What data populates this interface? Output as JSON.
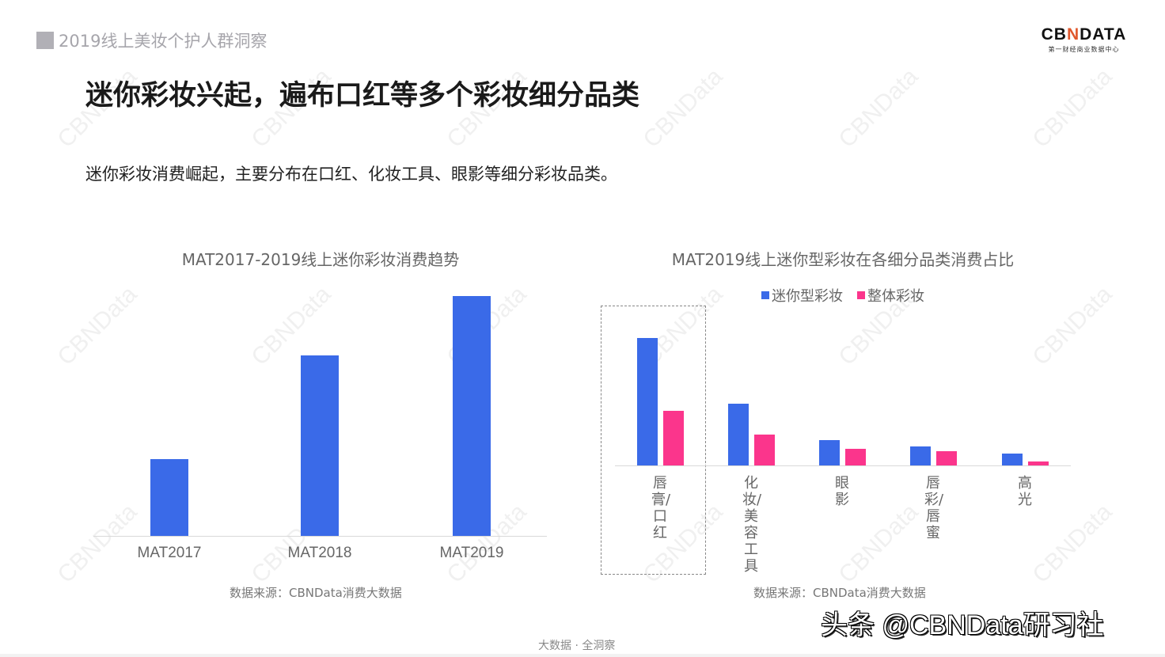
{
  "header": {
    "section_tag": "2019线上美妆个护人群洞察",
    "logo": {
      "brand_pre": "CB",
      "brand_mark": "N",
      "brand_post": "DATA",
      "tagline": "第一财经商业数据中心"
    }
  },
  "title": "迷你彩妆兴起，遍布口红等多个彩妆细分品类",
  "subtitle": "迷你彩妆消费崛起，主要分布在口红、化妆工具、眼影等细分彩妆品类。",
  "watermark_text": "CBNData",
  "colors": {
    "mini": "#3a6ae8",
    "overall": "#fb358c",
    "axis": "#d9d9d9"
  },
  "chart_data": [
    {
      "type": "bar",
      "title": "MAT2017-2019线上迷你彩妆消费趋势",
      "categories": [
        "MAT2017",
        "MAT2018",
        "MAT2019"
      ],
      "values": [
        97,
        228,
        303
      ],
      "value_note": "relative bar heights (no axis values shown)",
      "xlabel": "",
      "ylabel": "",
      "grid": false,
      "source": "数据来源：CBNData消费大数据"
    },
    {
      "type": "bar",
      "title": "MAT2019线上迷你型彩妆在各细分品类消费占比",
      "categories": [
        "唇膏/口红",
        "化妆/美容工具",
        "眼影",
        "唇彩/唇蜜",
        "高光"
      ],
      "series": [
        {
          "name": "迷你型彩妆",
          "color": "#3a6ae8",
          "values": [
            161,
            78,
            32,
            24,
            15
          ]
        },
        {
          "name": "整体彩妆",
          "color": "#fb358c",
          "values": [
            69,
            39,
            21,
            18,
            5
          ]
        }
      ],
      "value_note": "relative bar heights (no axis values shown)",
      "legend_position": "top",
      "highlighted_category": "唇膏/口红",
      "grid": false,
      "source": "数据来源：CBNData消费大数据"
    }
  ],
  "footer": {
    "slogan": "大数据 · 全洞察",
    "credit": "头条 @CBNData研习社"
  }
}
